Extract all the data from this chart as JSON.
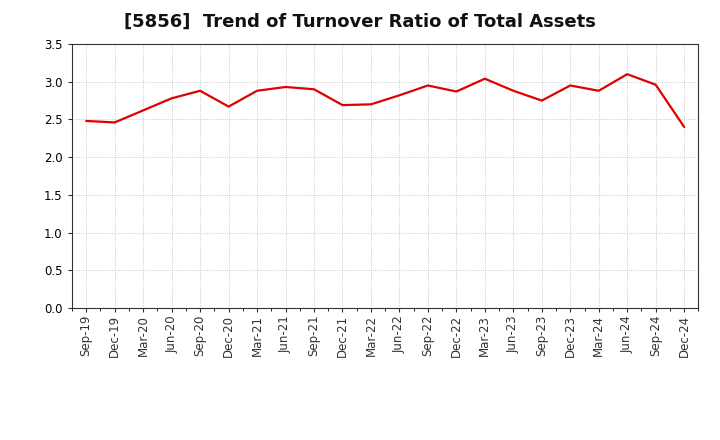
{
  "title": "[5856]  Trend of Turnover Ratio of Total Assets",
  "labels": [
    "Sep-19",
    "Dec-19",
    "Mar-20",
    "Jun-20",
    "Sep-20",
    "Dec-20",
    "Mar-21",
    "Jun-21",
    "Sep-21",
    "Dec-21",
    "Mar-22",
    "Jun-22",
    "Sep-22",
    "Dec-22",
    "Mar-23",
    "Jun-23",
    "Sep-23",
    "Dec-23",
    "Mar-24",
    "Jun-24",
    "Sep-24",
    "Dec-24"
  ],
  "values": [
    2.48,
    2.46,
    2.62,
    2.78,
    2.88,
    2.67,
    2.88,
    2.93,
    2.9,
    2.69,
    2.7,
    2.82,
    2.95,
    2.87,
    3.04,
    2.88,
    2.75,
    2.95,
    2.88,
    3.1,
    2.96,
    2.4
  ],
  "line_color": "#e00000",
  "line_width": 1.6,
  "ylim": [
    0.0,
    3.5
  ],
  "yticks": [
    0.0,
    0.5,
    1.0,
    1.5,
    2.0,
    2.5,
    3.0,
    3.5
  ],
  "grid_color": "#bbbbbb",
  "bg_color": "#ffffff",
  "title_fontsize": 13,
  "tick_fontsize": 8.5,
  "spine_color": "#333333"
}
